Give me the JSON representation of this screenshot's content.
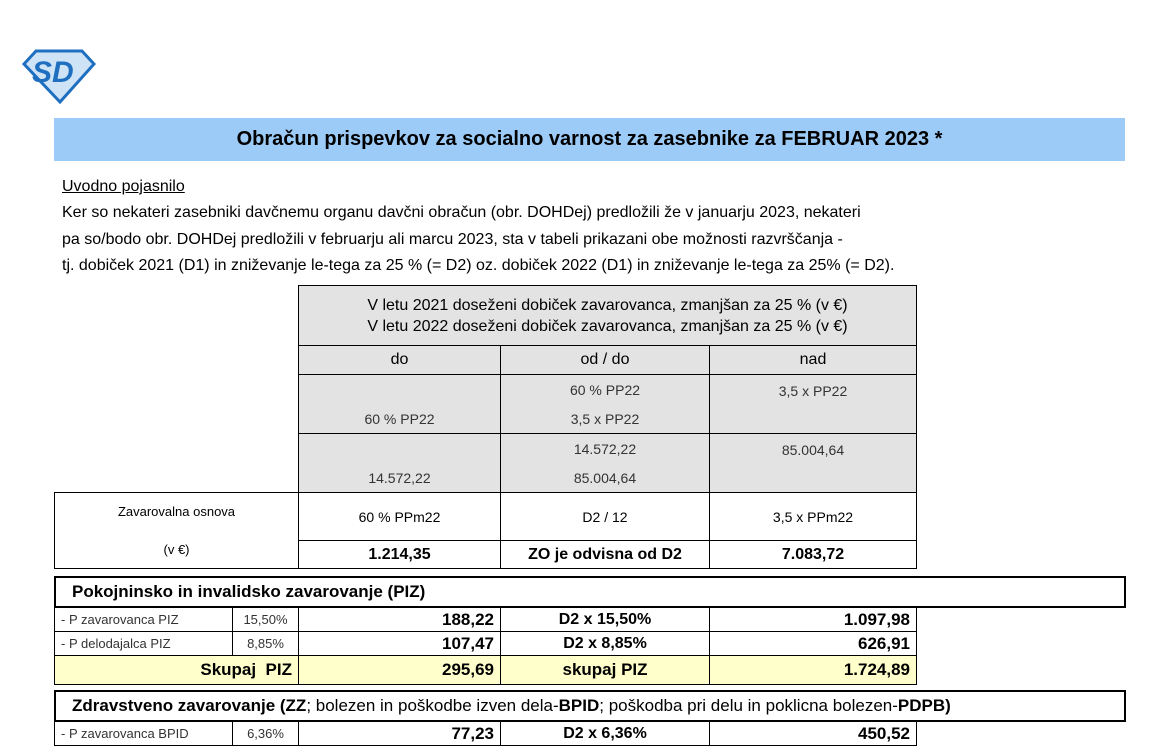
{
  "title": "Obračun prispevkov za socialno varnost za zasebnike za FEBRUAR 2023 *",
  "intro": {
    "heading": "Uvodno pojasnilo",
    "lines": [
      "Ker so nekateri zasebniki davčnemu organu davčni obračun (obr. DOHDej) predložili že v januarju 2023, nekateri",
      "pa so/bodo obr. DOHDej predložili v februarju ali marcu 2023, sta v tabeli prikazani obe možnosti razvrščanja -",
      "tj. dobiček 2021 (D1) in zniževanje le-tega za 25 % (= D2) oz. dobiček 2022 (D1) in zniževanje le-tega za 25% (= D2)."
    ]
  },
  "table": {
    "header_lines": [
      "V letu 2021 doseženi dobiček zavarovanca, zmanjšan za 25 % (v €)",
      "V letu 2022 doseženi dobiček zavarovanca, zmanjšan za 25 % (v €)"
    ],
    "cols": [
      "do",
      "od / do",
      "nad"
    ],
    "pp_row": {
      "do": "60 % PP22",
      "od_top": "60 % PP22",
      "od_bottom": "3,5 x PP22",
      "nad": "3,5 x PP22"
    },
    "amount_row": {
      "do": "14.572,22",
      "od_top": "14.572,22",
      "od_bottom": "85.004,64",
      "nad": "85.004,64"
    },
    "zo_label": "Zavarovalna osnova",
    "zo_unit": "(v €)",
    "zo": {
      "do": "60 % PPm22",
      "od": "D2 / 12",
      "nad": "3,5 x PPm22"
    },
    "zo_values": {
      "do": "1.214,35",
      "od": "ZO je odvisna od D2",
      "nad": "7.083,72"
    }
  },
  "piz": {
    "header": "Pokojninsko in invalidsko zavarovanje (PIZ)",
    "rows": [
      {
        "label": "- P zavarovanca PIZ",
        "rate": "15,50%",
        "do": "188,22",
        "od": "D2 x 15,50%",
        "nad": "1.097,98"
      },
      {
        "label": "- P delodajalca PIZ",
        "rate": "8,85%",
        "do": "107,47",
        "od": "D2 x 8,85%",
        "nad": "626,91"
      }
    ],
    "total": {
      "label": "Skupaj  PIZ",
      "do": "295,69",
      "od": "skupaj PIZ",
      "nad": "1.724,89"
    }
  },
  "zz": {
    "header_parts": [
      "Zdravstveno zavarovanje (",
      "ZZ",
      "; bolezen in poškodbe izven dela-",
      "BPID",
      "; poškodba pri delu in poklicna bolezen-",
      "PDPB",
      ")"
    ],
    "rows": [
      {
        "label": "- P zavarovanca BPID",
        "rate": "6,36%",
        "do": "77,23",
        "od": "D2 x 6,36%",
        "nad": "450,52"
      }
    ]
  },
  "colors": {
    "title_band": "#9dcbf7",
    "total_row": "#ffffcc",
    "header_cells": "#e3e3e3",
    "logo": "#1e6fc0"
  }
}
